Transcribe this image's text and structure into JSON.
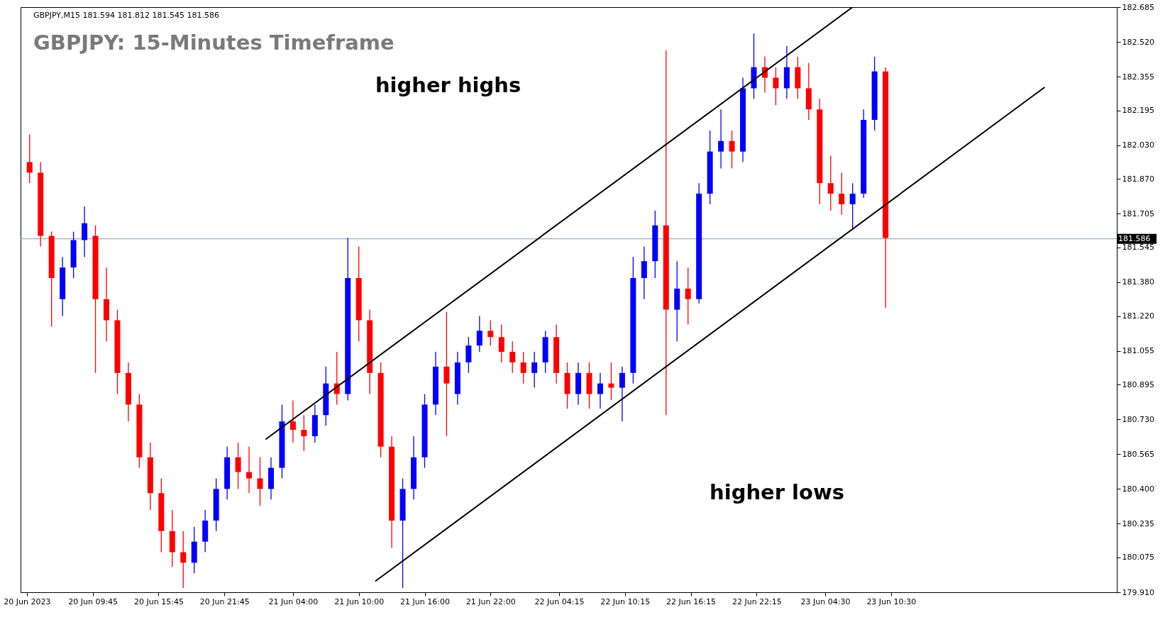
{
  "chart_data": {
    "type": "candlestick",
    "title": "GBPJPY: 15-Minutes Timeframe",
    "x": [
      "2023-06-20T04:00",
      "2023-06-20T05:00",
      "2023-06-20T06:00",
      "2023-06-20T07:00",
      "2023-06-20T08:00",
      "2023-06-20T09:00",
      "2023-06-20T10:00",
      "2023-06-20T11:00",
      "2023-06-20T12:00",
      "2023-06-20T13:00",
      "2023-06-20T14:00",
      "2023-06-20T15:00",
      "2023-06-20T16:00",
      "2023-06-20T17:00",
      "2023-06-20T18:00",
      "2023-06-20T19:00",
      "2023-06-20T20:00",
      "2023-06-20T21:00",
      "2023-06-20T22:00",
      "2023-06-20T23:00",
      "2023-06-21T00:00",
      "2023-06-21T01:00",
      "2023-06-21T02:00",
      "2023-06-21T03:00",
      "2023-06-21T04:00",
      "2023-06-21T05:00",
      "2023-06-21T06:00",
      "2023-06-21T07:00",
      "2023-06-21T08:00",
      "2023-06-21T09:00",
      "2023-06-21T10:00",
      "2023-06-21T11:00",
      "2023-06-21T12:00",
      "2023-06-21T13:00",
      "2023-06-21T14:00",
      "2023-06-21T15:00",
      "2023-06-21T16:00",
      "2023-06-21T17:00",
      "2023-06-21T18:00",
      "2023-06-21T19:00",
      "2023-06-21T20:00",
      "2023-06-21T21:00",
      "2023-06-21T22:00",
      "2023-06-21T23:00",
      "2023-06-22T00:00",
      "2023-06-22T01:00",
      "2023-06-22T02:00",
      "2023-06-22T03:00",
      "2023-06-22T04:00",
      "2023-06-22T05:00",
      "2023-06-22T06:00",
      "2023-06-22T07:00",
      "2023-06-22T08:00",
      "2023-06-22T09:00",
      "2023-06-22T10:00",
      "2023-06-22T11:00",
      "2023-06-22T12:00",
      "2023-06-22T13:00",
      "2023-06-22T14:00",
      "2023-06-22T15:00",
      "2023-06-22T16:00",
      "2023-06-22T17:00",
      "2023-06-22T18:00",
      "2023-06-22T19:00",
      "2023-06-22T20:00",
      "2023-06-22T21:00",
      "2023-06-22T22:00",
      "2023-06-22T23:00",
      "2023-06-23T00:00",
      "2023-06-23T01:00",
      "2023-06-23T02:00",
      "2023-06-23T03:00",
      "2023-06-23T04:00",
      "2023-06-23T05:00",
      "2023-06-23T06:00",
      "2023-06-23T07:00",
      "2023-06-23T08:00",
      "2023-06-23T09:00",
      "2023-06-23T10:00"
    ],
    "ohlc": [
      [
        181.95,
        182.08,
        181.85,
        181.9
      ],
      [
        181.9,
        181.95,
        181.55,
        181.6
      ],
      [
        181.6,
        181.62,
        181.17,
        181.4
      ],
      [
        181.3,
        181.5,
        181.22,
        181.45
      ],
      [
        181.45,
        181.62,
        181.4,
        181.58
      ],
      [
        181.58,
        181.74,
        181.5,
        181.66
      ],
      [
        181.6,
        181.65,
        180.95,
        181.3
      ],
      [
        181.3,
        181.45,
        181.1,
        181.2
      ],
      [
        181.2,
        181.25,
        180.85,
        180.95
      ],
      [
        180.95,
        181.0,
        180.72,
        180.8
      ],
      [
        180.8,
        180.85,
        180.5,
        180.55
      ],
      [
        180.55,
        180.62,
        180.3,
        180.38
      ],
      [
        180.38,
        180.45,
        180.1,
        180.2
      ],
      [
        180.2,
        180.3,
        180.03,
        180.1
      ],
      [
        180.1,
        180.2,
        179.93,
        180.05
      ],
      [
        180.05,
        180.22,
        180.0,
        180.15
      ],
      [
        180.15,
        180.3,
        180.1,
        180.25
      ],
      [
        180.25,
        180.45,
        180.2,
        180.4
      ],
      [
        180.4,
        180.6,
        180.35,
        180.55
      ],
      [
        180.55,
        180.62,
        180.4,
        180.48
      ],
      [
        180.48,
        180.6,
        180.38,
        180.45
      ],
      [
        180.45,
        180.55,
        180.32,
        180.4
      ],
      [
        180.4,
        180.55,
        180.35,
        180.5
      ],
      [
        180.5,
        180.8,
        180.45,
        180.72
      ],
      [
        180.72,
        180.82,
        180.62,
        180.68
      ],
      [
        180.68,
        180.75,
        180.58,
        180.65
      ],
      [
        180.65,
        180.8,
        180.62,
        180.75
      ],
      [
        180.75,
        180.98,
        180.7,
        180.9
      ],
      [
        180.9,
        181.05,
        180.8,
        180.85
      ],
      [
        180.85,
        181.59,
        180.82,
        181.4
      ],
      [
        181.4,
        181.55,
        181.1,
        181.2
      ],
      [
        181.2,
        181.25,
        180.85,
        180.95
      ],
      [
        180.95,
        181.0,
        180.55,
        180.6
      ],
      [
        180.6,
        180.65,
        180.12,
        180.25
      ],
      [
        180.25,
        180.45,
        179.93,
        180.4
      ],
      [
        180.4,
        180.65,
        180.35,
        180.55
      ],
      [
        180.55,
        180.85,
        180.5,
        180.8
      ],
      [
        180.8,
        181.05,
        180.75,
        180.98
      ],
      [
        180.98,
        181.24,
        180.65,
        180.9
      ],
      [
        180.85,
        181.05,
        180.8,
        181.0
      ],
      [
        181.0,
        181.12,
        180.95,
        181.08
      ],
      [
        181.08,
        181.22,
        181.05,
        181.15
      ],
      [
        181.15,
        181.2,
        181.08,
        181.12
      ],
      [
        181.12,
        181.18,
        181.0,
        181.05
      ],
      [
        181.05,
        181.1,
        180.95,
        181.0
      ],
      [
        181.0,
        181.05,
        180.9,
        180.95
      ],
      [
        180.95,
        181.05,
        180.88,
        181.0
      ],
      [
        181.0,
        181.15,
        180.95,
        181.12
      ],
      [
        181.12,
        181.18,
        180.9,
        180.95
      ],
      [
        180.95,
        181.0,
        180.78,
        180.85
      ],
      [
        180.85,
        181.0,
        180.8,
        180.95
      ],
      [
        180.95,
        181.0,
        180.78,
        180.85
      ],
      [
        180.85,
        180.95,
        180.78,
        180.9
      ],
      [
        180.9,
        181.0,
        180.82,
        180.88
      ],
      [
        180.88,
        180.98,
        180.72,
        180.95
      ],
      [
        180.95,
        181.5,
        180.9,
        181.4
      ],
      [
        181.4,
        181.55,
        181.3,
        181.48
      ],
      [
        181.48,
        181.72,
        181.4,
        181.65
      ],
      [
        181.65,
        182.48,
        180.75,
        181.25
      ],
      [
        181.25,
        181.48,
        181.1,
        181.35
      ],
      [
        181.35,
        181.45,
        181.18,
        181.3
      ],
      [
        181.3,
        181.85,
        181.28,
        181.8
      ],
      [
        181.8,
        182.1,
        181.75,
        182.0
      ],
      [
        182.0,
        182.2,
        181.92,
        182.05
      ],
      [
        182.05,
        182.1,
        181.92,
        182.0
      ],
      [
        182.0,
        182.35,
        181.95,
        182.3
      ],
      [
        182.3,
        182.56,
        182.25,
        182.4
      ],
      [
        182.4,
        182.45,
        182.28,
        182.35
      ],
      [
        182.35,
        182.4,
        182.22,
        182.3
      ],
      [
        182.3,
        182.5,
        182.25,
        182.4
      ],
      [
        182.4,
        182.45,
        182.25,
        182.3
      ],
      [
        182.3,
        182.42,
        182.15,
        182.2
      ],
      [
        182.2,
        182.25,
        181.75,
        181.85
      ],
      [
        181.85,
        181.98,
        181.72,
        181.8
      ],
      [
        181.8,
        181.9,
        181.7,
        181.75
      ],
      [
        181.75,
        181.85,
        181.63,
        181.8
      ],
      [
        181.8,
        182.2,
        181.78,
        182.15
      ],
      [
        182.15,
        182.45,
        182.1,
        182.38
      ],
      [
        182.38,
        182.4,
        181.26,
        181.59
      ]
    ],
    "colors": [
      "#ff0000",
      "#ff0000",
      "#ff0000",
      "#0000ff",
      "#0000ff",
      "#0000ff",
      "#ff0000",
      "#ff0000",
      "#ff0000",
      "#ff0000",
      "#ff0000",
      "#ff0000",
      "#ff0000",
      "#ff0000",
      "#ff0000",
      "#0000ff",
      "#0000ff",
      "#0000ff",
      "#0000ff",
      "#ff0000",
      "#ff0000",
      "#ff0000",
      "#0000ff",
      "#0000ff",
      "#ff0000",
      "#ff0000",
      "#0000ff",
      "#0000ff",
      "#ff0000",
      "#0000ff",
      "#ff0000",
      "#ff0000",
      "#ff0000",
      "#ff0000",
      "#0000ff",
      "#0000ff",
      "#0000ff",
      "#0000ff",
      "#ff0000",
      "#0000ff",
      "#0000ff",
      "#0000ff",
      "#ff0000",
      "#ff0000",
      "#ff0000",
      "#ff0000",
      "#0000ff",
      "#0000ff",
      "#ff0000",
      "#ff0000",
      "#0000ff",
      "#ff0000",
      "#0000ff",
      "#ff0000",
      "#0000ff",
      "#0000ff",
      "#0000ff",
      "#0000ff",
      "#ff0000",
      "#0000ff",
      "#ff0000",
      "#0000ff",
      "#0000ff",
      "#0000ff",
      "#ff0000",
      "#0000ff",
      "#0000ff",
      "#ff0000",
      "#ff0000",
      "#0000ff",
      "#ff0000",
      "#ff0000",
      "#ff0000",
      "#ff0000",
      "#ff0000",
      "#0000ff",
      "#0000ff",
      "#0000ff",
      "#ff0000"
    ],
    "series": [
      {
        "type": "line",
        "color": "#000000",
        "x": [
          "2023-06-21T01:30",
          "2023-06-23T07:00"
        ],
        "values": [
          180.635,
          182.685
        ]
      },
      {
        "type": "line",
        "color": "#000000",
        "x": [
          "2023-06-21T11:30",
          "2023-06-24T00:30"
        ],
        "values": [
          179.962,
          182.305
        ]
      }
    ],
    "xlim": [
      "2023-06-20T03:30",
      "2023-06-24T06:45"
    ],
    "xticks": [
      {
        "value": "2023-06-20T03:45",
        "label": "20 Jun 2023"
      },
      {
        "value": "2023-06-20T09:45",
        "label": "20 Jun 09:45"
      },
      {
        "value": "2023-06-20T15:45",
        "label": "20 Jun 15:45"
      },
      {
        "value": "2023-06-20T21:45",
        "label": "20 Jun 21:45"
      },
      {
        "value": "2023-06-21T04:00",
        "label": "21 Jun 04:00"
      },
      {
        "value": "2023-06-21T10:00",
        "label": "21 Jun 10:00"
      },
      {
        "value": "2023-06-21T16:00",
        "label": "21 Jun 16:00"
      },
      {
        "value": "2023-06-21T22:00",
        "label": "21 Jun 22:00"
      },
      {
        "value": "2023-06-22T04:15",
        "label": "22 Jun 04:15"
      },
      {
        "value": "2023-06-22T10:15",
        "label": "22 Jun 10:15"
      },
      {
        "value": "2023-06-22T16:15",
        "label": "22 Jun 16:15"
      },
      {
        "value": "2023-06-22T22:15",
        "label": "22 Jun 22:15"
      },
      {
        "value": "2023-06-23T04:30",
        "label": "23 Jun 04:30"
      },
      {
        "value": "2023-06-23T10:30",
        "label": "23 Jun 10:30"
      }
    ],
    "ylim": [
      179.91,
      182.685
    ],
    "yticks": [
      {
        "value": 182.685,
        "label": "182.685"
      },
      {
        "value": 182.52,
        "label": "182.520"
      },
      {
        "value": 182.355,
        "label": "182.355"
      },
      {
        "value": 182.195,
        "label": "182.195"
      },
      {
        "value": 182.03,
        "label": "182.030"
      },
      {
        "value": 181.87,
        "label": "181.870"
      },
      {
        "value": 181.705,
        "label": "181.705"
      },
      {
        "value": 181.545,
        "label": "181.545"
      },
      {
        "value": 181.38,
        "label": "181.380"
      },
      {
        "value": 181.22,
        "label": "181.220"
      },
      {
        "value": 181.055,
        "label": "181.055"
      },
      {
        "value": 180.895,
        "label": "180.895"
      },
      {
        "value": 180.73,
        "label": "180.730"
      },
      {
        "value": 180.565,
        "label": "180.565"
      },
      {
        "value": 180.4,
        "label": "180.400"
      },
      {
        "value": 180.235,
        "label": "180.235"
      },
      {
        "value": 180.075,
        "label": "180.075"
      },
      {
        "value": 179.91,
        "label": "179.910"
      }
    ],
    "ref_lines": [
      {
        "axis": "y",
        "value": 181.586,
        "label": "181.586",
        "color": "#8a9aa8"
      }
    ],
    "annotations": [
      "GBPJPY,M15  181.594 181.812 181.545 181.586",
      "higher highs",
      "higher lows"
    ]
  }
}
